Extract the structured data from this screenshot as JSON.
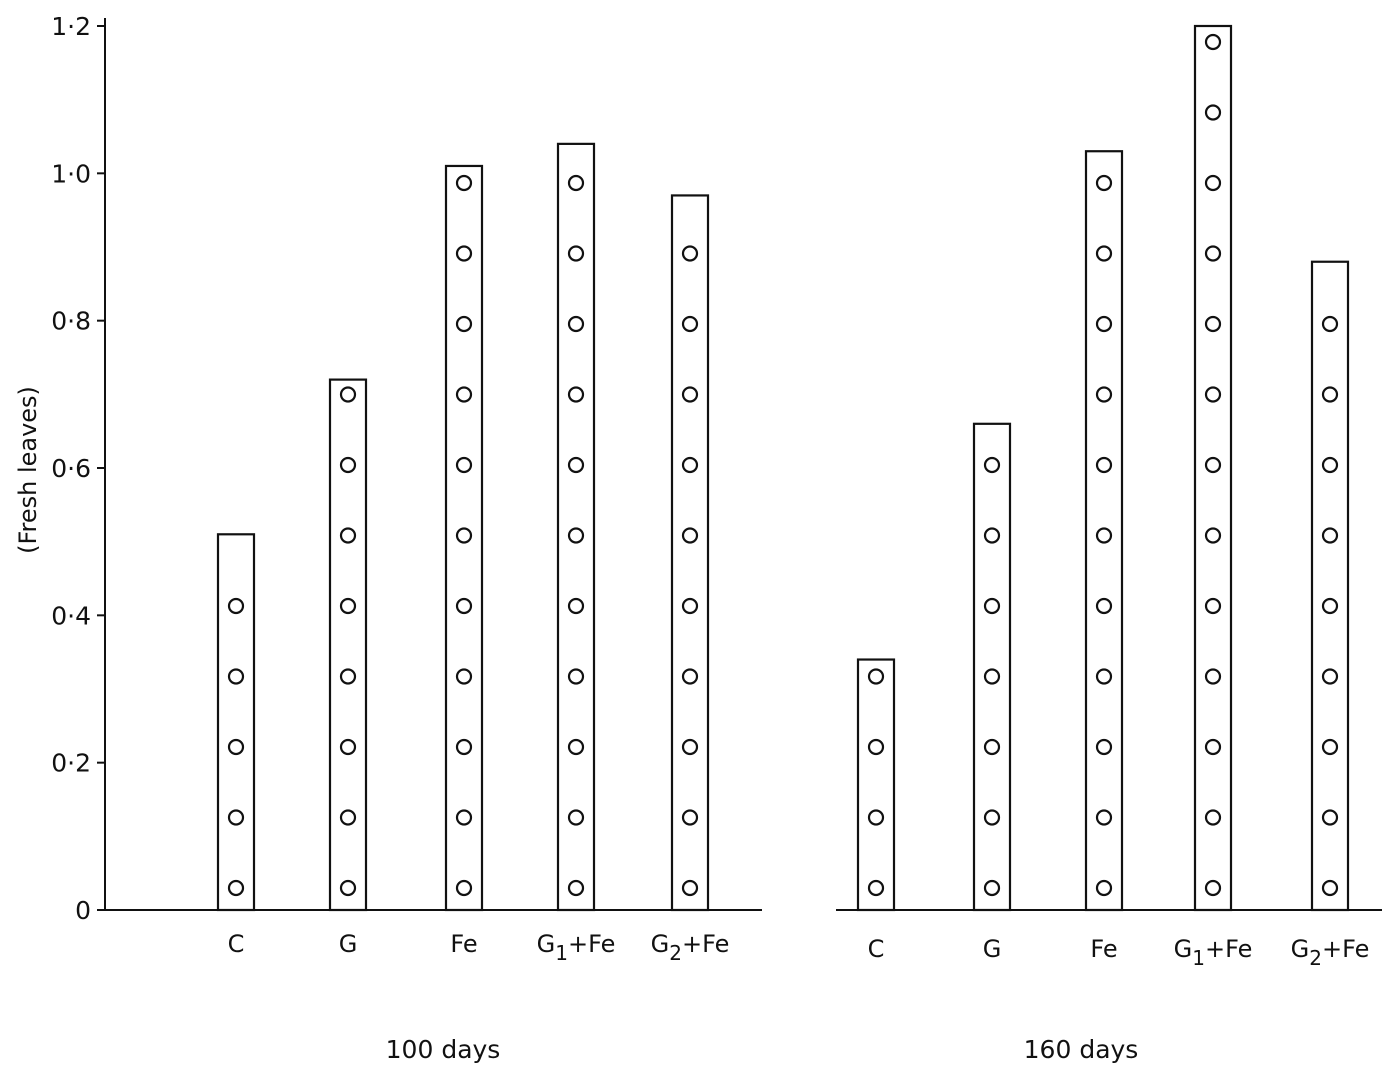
{
  "chart_data": {
    "type": "bar",
    "ylabel": "(Fresh leaves)",
    "ylim": [
      0,
      1.2
    ],
    "yticks": [
      "0",
      "0·2",
      "0·4",
      "0·6",
      "0·8",
      "1·0",
      "1·2"
    ],
    "bar_fill": "pattern of open circles",
    "panels": [
      {
        "label": "100 days",
        "categories": [
          "C",
          "G",
          "Fe",
          "G1+Fe",
          "G2+Fe"
        ],
        "values": [
          0.51,
          0.72,
          1.01,
          1.04,
          0.97
        ]
      },
      {
        "label": "160 days",
        "categories": [
          "C",
          "G",
          "Fe",
          "G1+Fe",
          "G2+Fe"
        ],
        "values": [
          0.34,
          0.66,
          1.03,
          1.2,
          0.88
        ]
      }
    ]
  }
}
